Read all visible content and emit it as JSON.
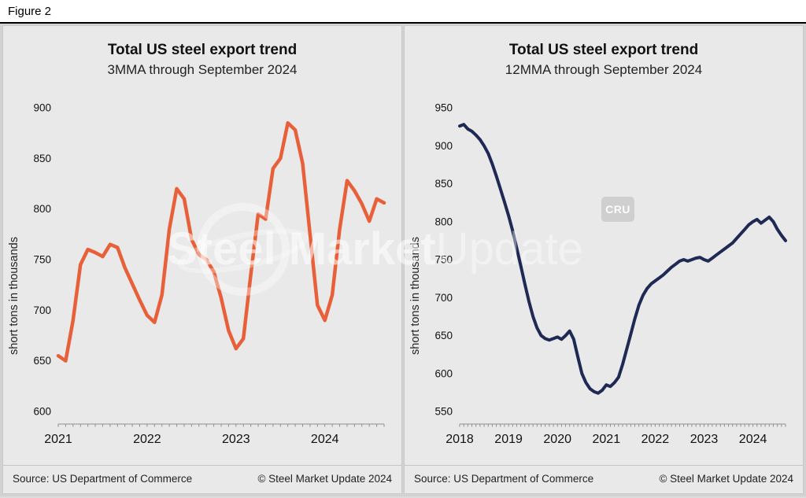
{
  "figure_label": "Figure 2",
  "watermark": {
    "text_bold": "Steel Market",
    "text_light": "Update",
    "badge": "CRU"
  },
  "panels": [
    {
      "title": "Total US steel export trend",
      "subtitle": "3MMA through September 2024",
      "y_axis_label": "short tons in thousands",
      "source": "Source: US Department of Commerce",
      "copyright": "© Steel Market Update 2024"
    },
    {
      "title": "Total US steel export trend",
      "subtitle": "12MMA through September 2024",
      "y_axis_label": "short tons in thousands",
      "source": "Source: US Department of Commerce",
      "copyright": "© Steel Market Update 2024"
    }
  ],
  "chart_data": [
    {
      "type": "line",
      "title": "Total US steel export trend",
      "subtitle": "3MMA through September 2024",
      "ylabel": "short tons in thousands",
      "ylim": [
        600,
        900
      ],
      "yticks": [
        600,
        650,
        700,
        750,
        800,
        850,
        900
      ],
      "x_start": "2021-01",
      "x_end": "2024-09",
      "frequency": "monthly",
      "x_tick_years": [
        "2021",
        "2022",
        "2023",
        "2024"
      ],
      "color": "#E8603A",
      "stroke_width": 4.5,
      "values": [
        655,
        650,
        690,
        745,
        760,
        757,
        753,
        765,
        762,
        742,
        726,
        710,
        695,
        688,
        715,
        780,
        820,
        810,
        770,
        755,
        750,
        738,
        712,
        680,
        662,
        672,
        735,
        795,
        790,
        840,
        850,
        885,
        878,
        845,
        775,
        705,
        690,
        715,
        780,
        828,
        818,
        805,
        788,
        810,
        806
      ]
    },
    {
      "type": "line",
      "title": "Total US steel export trend",
      "subtitle": "12MMA through September 2024",
      "ylabel": "short tons in thousands",
      "ylim": [
        550,
        950
      ],
      "yticks": [
        550,
        600,
        650,
        700,
        750,
        800,
        850,
        900,
        950
      ],
      "x_start": "2018-01",
      "x_end": "2024-09",
      "frequency": "monthly",
      "x_tick_years": [
        "2018",
        "2019",
        "2020",
        "2021",
        "2022",
        "2023",
        "2024"
      ],
      "color": "#1F2A54",
      "stroke_width": 4,
      "values": [
        926,
        928,
        922,
        919,
        914,
        908,
        900,
        890,
        876,
        860,
        843,
        826,
        808,
        788,
        765,
        742,
        718,
        695,
        675,
        660,
        650,
        646,
        644,
        646,
        648,
        645,
        650,
        656,
        645,
        622,
        600,
        588,
        580,
        576,
        574,
        578,
        585,
        583,
        588,
        595,
        612,
        632,
        652,
        672,
        690,
        703,
        712,
        718,
        722,
        726,
        730,
        735,
        740,
        744,
        748,
        750,
        748,
        750,
        752,
        753,
        750,
        748,
        752,
        756,
        760,
        764,
        768,
        772,
        778,
        784,
        790,
        796,
        800,
        803,
        798,
        802,
        806,
        800,
        790,
        782,
        775
      ]
    }
  ]
}
